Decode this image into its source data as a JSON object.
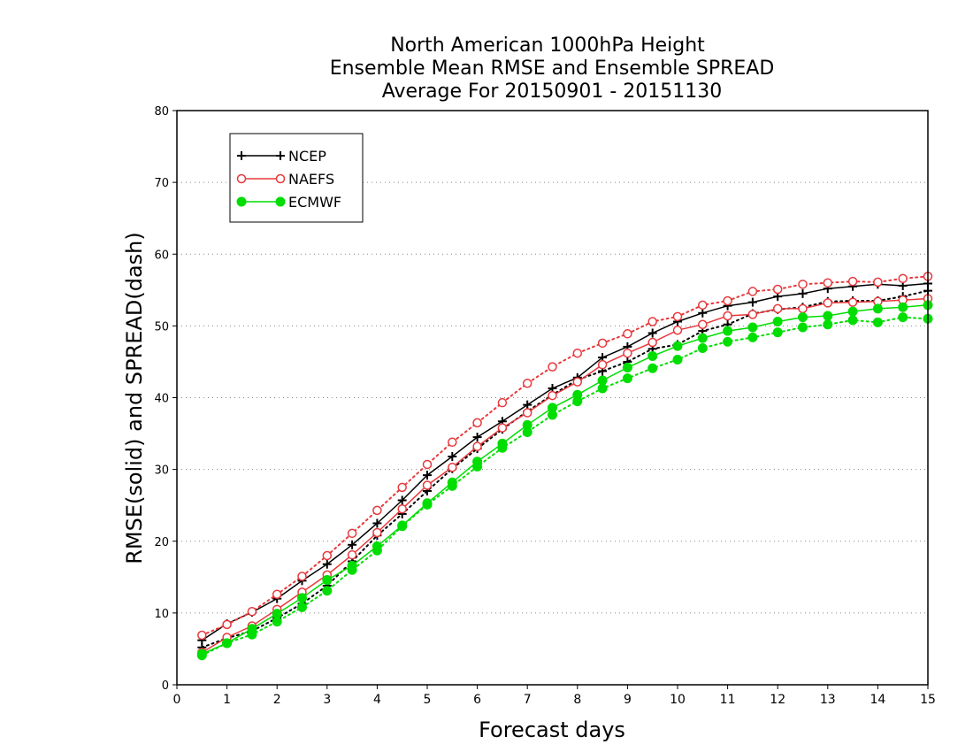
{
  "chart_data": {
    "type": "line",
    "title_lines": [
      "North American 1000hPa Height",
      "Ensemble Mean RMSE and Ensemble SPREAD",
      "Average For 20150901 - 20151130"
    ],
    "xlabel": "Forecast days",
    "ylabel": "RMSE(solid) and SPREAD(dash)",
    "xlim": [
      0,
      15
    ],
    "ylim": [
      0,
      80
    ],
    "xticks": [
      0,
      1,
      2,
      3,
      4,
      5,
      6,
      7,
      8,
      9,
      10,
      11,
      12,
      13,
      14,
      15
    ],
    "yticks": [
      0,
      10,
      20,
      30,
      40,
      50,
      60,
      70,
      80
    ],
    "grid": "horizontal dotted",
    "legend_position": "top-left",
    "x": [
      0.5,
      1,
      1.5,
      2,
      2.5,
      3,
      3.5,
      4,
      4.5,
      5,
      5.5,
      6,
      6.5,
      7,
      7.5,
      8,
      8.5,
      9,
      9.5,
      10,
      10.5,
      11,
      11.5,
      12,
      12.5,
      13,
      13.5,
      14,
      14.5,
      15
    ],
    "series": [
      {
        "name": "NCEP",
        "color": "#000000",
        "marker": "plus",
        "rmse": [
          6.2,
          8.5,
          10.1,
          12.0,
          14.5,
          16.8,
          19.5,
          22.5,
          25.7,
          29.2,
          31.8,
          34.5,
          36.7,
          39.0,
          41.3,
          42.8,
          45.6,
          47.1,
          49.0,
          50.6,
          51.8,
          52.8,
          53.3,
          54.1,
          54.5,
          55.2,
          55.5,
          55.8,
          55.6,
          55.9
        ],
        "spread": [
          5.2,
          6.5,
          7.5,
          9.3,
          11.3,
          13.8,
          17.2,
          20.8,
          23.8,
          27.0,
          30.1,
          32.9,
          35.6,
          38.1,
          40.4,
          42.5,
          43.7,
          45.0,
          46.8,
          47.4,
          49.3,
          50.2,
          51.7,
          52.3,
          52.6,
          53.4,
          53.5,
          53.5,
          54.1,
          54.9
        ]
      },
      {
        "name": "NAEFS",
        "color": "#e8383c",
        "marker": "open-circle",
        "rmse": [
          4.5,
          6.6,
          8.2,
          10.5,
          12.9,
          15.3,
          18.1,
          21.2,
          24.5,
          27.8,
          30.3,
          33.2,
          35.8,
          37.9,
          40.3,
          42.2,
          44.6,
          46.2,
          47.7,
          49.4,
          50.2,
          51.4,
          51.6,
          52.4,
          52.4,
          53.2,
          53.3,
          53.4,
          53.6,
          53.8
        ],
        "spread": [
          6.9,
          8.4,
          10.2,
          12.6,
          15.1,
          18.0,
          21.1,
          24.3,
          27.5,
          30.7,
          33.8,
          36.5,
          39.3,
          42.0,
          44.3,
          46.2,
          47.6,
          48.9,
          50.6,
          51.3,
          52.9,
          53.5,
          54.8,
          55.1,
          55.8,
          56.0,
          56.2,
          56.1,
          56.6,
          56.9
        ]
      },
      {
        "name": "ECMWF",
        "color": "#00dd00",
        "marker": "filled-circle",
        "rmse": [
          4.3,
          5.8,
          7.8,
          9.9,
          12.1,
          14.6,
          16.6,
          19.3,
          22.2,
          25.3,
          28.2,
          31.1,
          33.6,
          36.2,
          38.6,
          40.4,
          42.4,
          44.2,
          45.8,
          47.2,
          48.3,
          49.3,
          49.8,
          50.6,
          51.2,
          51.4,
          52.0,
          52.4,
          52.6,
          52.9
        ],
        "spread": [
          4.1,
          5.8,
          7.0,
          8.8,
          10.8,
          13.1,
          16.0,
          18.7,
          22.1,
          25.1,
          27.7,
          30.4,
          33.0,
          35.2,
          37.6,
          39.5,
          41.3,
          42.7,
          44.1,
          45.3,
          46.9,
          47.8,
          48.4,
          49.1,
          49.8,
          50.2,
          50.8,
          50.5,
          51.2,
          51.0
        ]
      }
    ]
  }
}
